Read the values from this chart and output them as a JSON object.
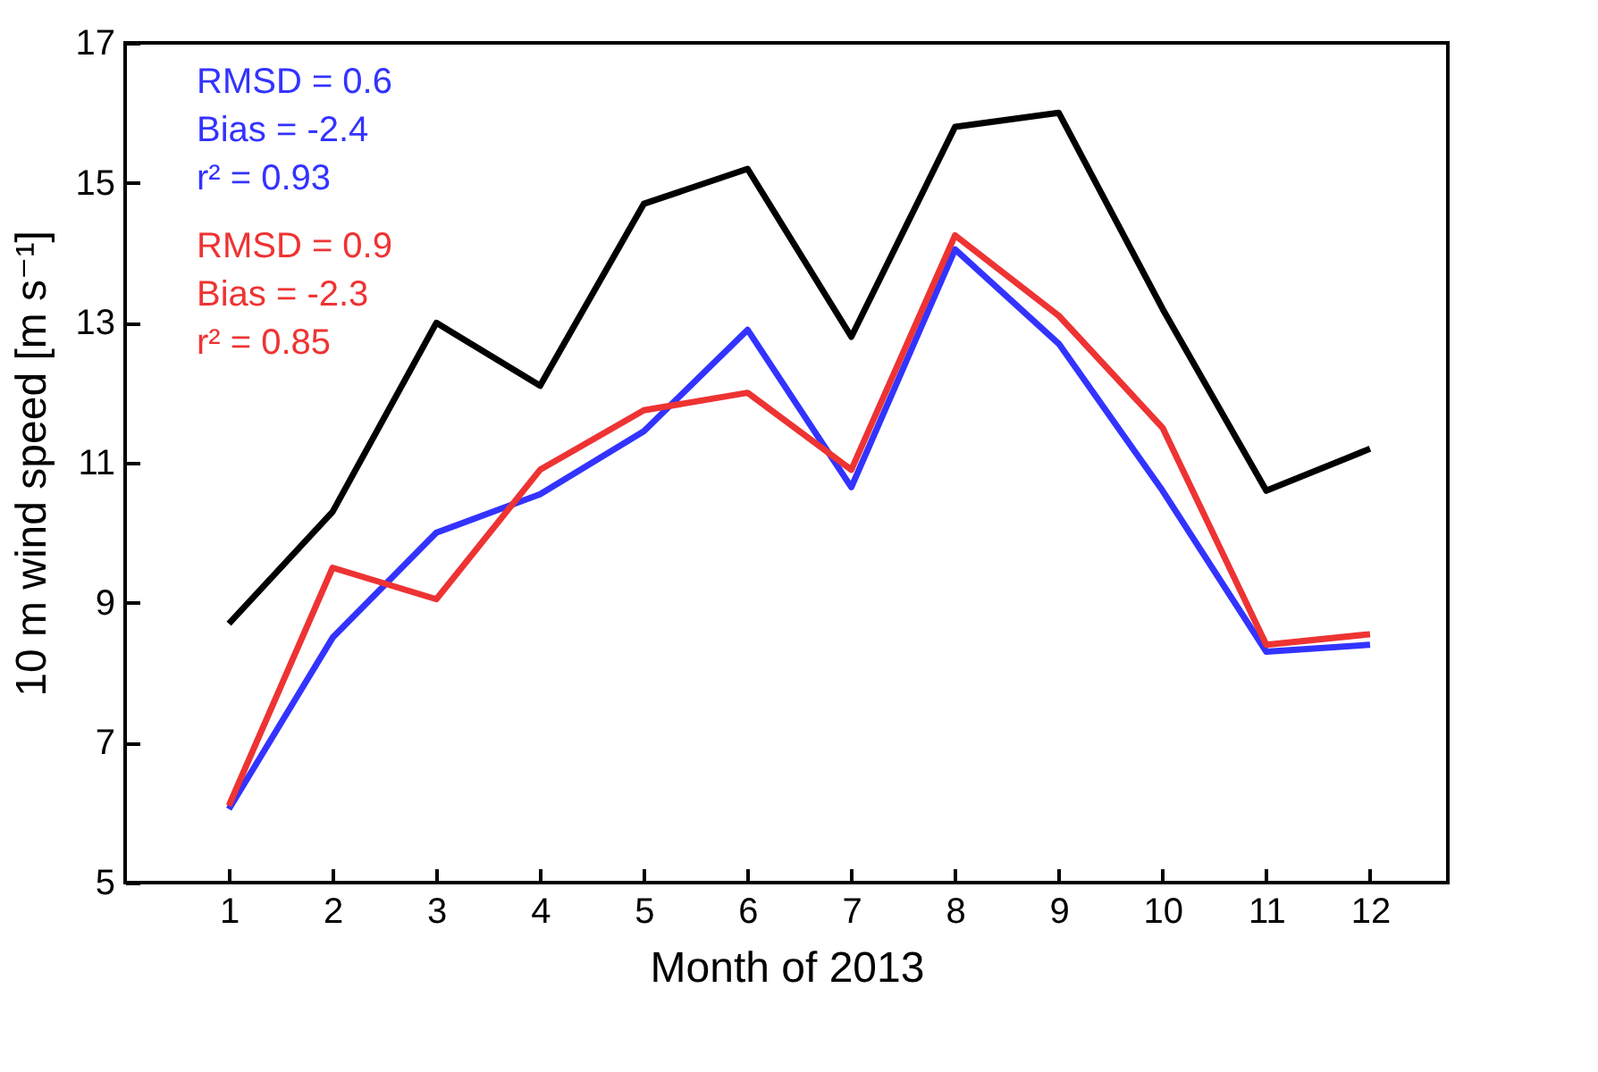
{
  "chart_data": {
    "type": "line",
    "xlabel": "Month of 2013",
    "ylabel": "10 m wind speed [m s⁻¹]",
    "x": [
      1,
      2,
      3,
      4,
      5,
      6,
      7,
      8,
      9,
      10,
      11,
      12
    ],
    "xlim": [
      0,
      12.75
    ],
    "xticks": [
      1,
      2,
      3,
      4,
      5,
      6,
      7,
      8,
      9,
      10,
      11,
      12
    ],
    "series": [
      {
        "color": "#000000",
        "values": [
          8.7,
          10.3,
          13.0,
          12.1,
          14.7,
          15.2,
          12.8,
          15.8,
          16.0,
          13.2,
          10.6,
          11.2
        ]
      },
      {
        "color": "#3333ff",
        "values": [
          6.05,
          8.5,
          10.0,
          10.55,
          11.45,
          12.9,
          10.65,
          14.05,
          12.7,
          10.6,
          8.3,
          8.4
        ]
      },
      {
        "color": "#ee3333",
        "values": [
          6.1,
          9.5,
          9.05,
          10.9,
          11.75,
          12.0,
          10.9,
          14.25,
          13.1,
          11.5,
          8.4,
          8.55
        ]
      }
    ],
    "annotations": [
      "RMSD = 0.6",
      "Bias = -2.4",
      "r² = 0.93",
      "RMSD = 0.9",
      "Bias = -2.3",
      "r² = 0.85"
    ],
    "ylim": [
      5,
      17
    ],
    "yticks": [
      5,
      7,
      9,
      11,
      13,
      15,
      17
    ],
    "grid": false,
    "legend": false,
    "marker": "none",
    "line_style": "solid"
  }
}
